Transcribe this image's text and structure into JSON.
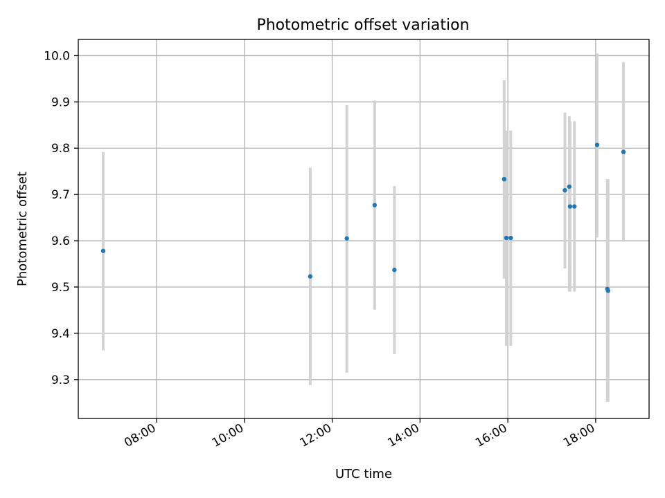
{
  "chart_data": {
    "type": "scatter",
    "title": "Photometric offset variation",
    "xlabel": "UTC time",
    "ylabel": "Photometric offset",
    "xlim": [
      "06:13",
      "19:13"
    ],
    "ylim": [
      9.216,
      10.035
    ],
    "x_ticks": [
      "08:00",
      "10:00",
      "12:00",
      "14:00",
      "16:00",
      "18:00"
    ],
    "y_ticks": [
      9.3,
      9.4,
      9.5,
      9.6,
      9.7,
      9.8,
      9.9,
      10.0
    ],
    "grid": true,
    "point_color": "#1f77b4",
    "errorbar_color": "#d3d3d3",
    "points": [
      {
        "x": "06:47",
        "y": 9.578,
        "ylow": 9.363,
        "yhigh": 9.792
      },
      {
        "x": "11:30",
        "y": 9.523,
        "ylow": 9.288,
        "yhigh": 9.758
      },
      {
        "x": "12:20",
        "y": 9.605,
        "ylow": 9.315,
        "yhigh": 9.893
      },
      {
        "x": "12:58",
        "y": 9.677,
        "ylow": 9.451,
        "yhigh": 9.903
      },
      {
        "x": "13:25",
        "y": 9.537,
        "ylow": 9.355,
        "yhigh": 9.718
      },
      {
        "x": "15:55",
        "y": 9.733,
        "ylow": 9.518,
        "yhigh": 9.947
      },
      {
        "x": "15:58",
        "y": 9.606,
        "ylow": 9.373,
        "yhigh": 9.838
      },
      {
        "x": "16:04",
        "y": 9.606,
        "ylow": 9.373,
        "yhigh": 9.838
      },
      {
        "x": "17:18",
        "y": 9.709,
        "ylow": 9.54,
        "yhigh": 9.877
      },
      {
        "x": "17:24",
        "y": 9.717,
        "ylow": 9.49,
        "yhigh": 9.869
      },
      {
        "x": "17:25",
        "y": 9.674,
        "ylow": 9.49,
        "yhigh": 9.858
      },
      {
        "x": "17:31",
        "y": 9.674,
        "ylow": 9.49,
        "yhigh": 9.858
      },
      {
        "x": "18:02",
        "y": 9.807,
        "ylow": 9.607,
        "yhigh": 10.005
      },
      {
        "x": "18:16",
        "y": 9.496,
        "ylow": 9.252,
        "yhigh": 9.733
      },
      {
        "x": "18:17",
        "y": 9.492,
        "ylow": 9.252,
        "yhigh": 9.733
      },
      {
        "x": "18:38",
        "y": 9.792,
        "ylow": 9.598,
        "yhigh": 9.986
      }
    ]
  }
}
